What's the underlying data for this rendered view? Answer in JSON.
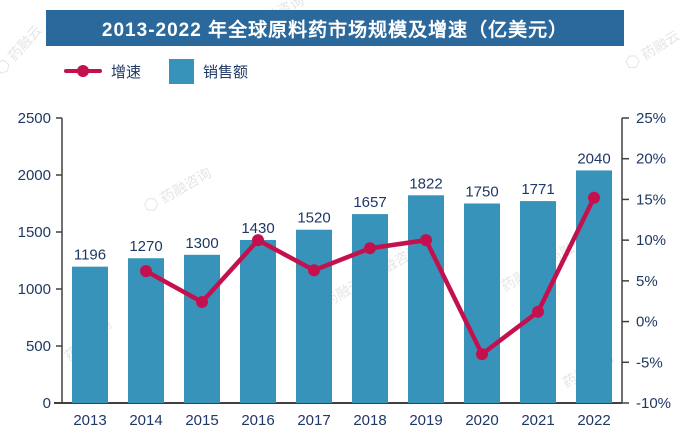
{
  "title": {
    "text": "2013-2022 年全球原料药市场规模及增速（亿美元）"
  },
  "legend": {
    "growth_label": "增速",
    "sales_label": "销售额"
  },
  "colors": {
    "banner_bg": "#2b699c",
    "banner_text": "#ffffff",
    "bar": "#3793ba",
    "line": "#c4114e",
    "axis_text": "#1f3864",
    "axis_line": "#404040",
    "watermark": "#8a8a8a"
  },
  "watermark": {
    "logo_glyph": "⬡",
    "brand": "药融云",
    "consult": "药融咨询",
    "combo": "药融云 | 药融咨询"
  },
  "chart_data": {
    "type": "bar+line combo",
    "title": "2013-2022 年全球原料药市场规模及增速（亿美元）",
    "categories": [
      "2013",
      "2014",
      "2015",
      "2016",
      "2017",
      "2018",
      "2019",
      "2020",
      "2021",
      "2022"
    ],
    "series": [
      {
        "name": "销售额",
        "type": "bar",
        "axis": "left",
        "values": [
          1196,
          1270,
          1300,
          1430,
          1520,
          1657,
          1822,
          1750,
          1771,
          2040
        ],
        "labels": [
          "1196",
          "1270",
          "1300",
          "1430",
          "1520",
          "1657",
          "1822",
          "1750",
          "1771",
          "2040"
        ]
      },
      {
        "name": "增速",
        "type": "line",
        "axis": "right",
        "values": [
          null,
          6.2,
          2.4,
          10.0,
          6.3,
          9.0,
          10.0,
          -4.0,
          1.2,
          15.2
        ]
      }
    ],
    "left_axis": {
      "min": 0,
      "max": 2500,
      "step": 500,
      "ticks": [
        "0",
        "500",
        "1000",
        "1500",
        "2000",
        "2500"
      ]
    },
    "right_axis": {
      "min": -10,
      "max": 25,
      "step": 5,
      "ticks": [
        "-10%",
        "-5%",
        "0%",
        "5%",
        "10%",
        "15%",
        "20%",
        "25%"
      ]
    },
    "grid": false,
    "legend_position": "top-left",
    "bar_value_labels_shown": true
  }
}
